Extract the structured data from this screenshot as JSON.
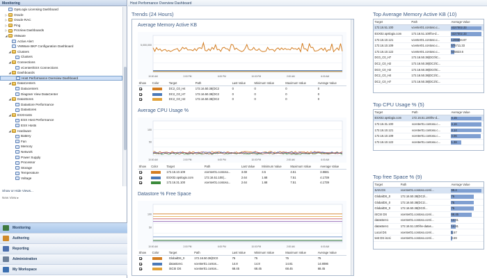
{
  "left_pane": {
    "title": "Monitoring",
    "tree": [
      {
        "label": "OpsLogix Licensing Dashboard",
        "indent": 1,
        "icon": "view",
        "toggle": ""
      },
      {
        "label": "Oracle",
        "indent": 1,
        "icon": "folder",
        "toggle": "▷"
      },
      {
        "label": "Oracle RAC",
        "indent": 1,
        "icon": "folder",
        "toggle": "▷"
      },
      {
        "label": "Ping",
        "indent": 1,
        "icon": "folder",
        "toggle": "▷"
      },
      {
        "label": "ProView Dashboards",
        "indent": 1,
        "icon": "folder",
        "toggle": "▷"
      },
      {
        "label": "VMware",
        "indent": 1,
        "icon": "folder",
        "toggle": "◢"
      },
      {
        "label": "Active Alert",
        "indent": 2,
        "icon": "view",
        "toggle": ""
      },
      {
        "label": "VMWare BKP Configuration Dashboard",
        "indent": 2,
        "icon": "view",
        "toggle": ""
      },
      {
        "label": "Clusters",
        "indent": 2,
        "icon": "folder",
        "toggle": "◢"
      },
      {
        "label": "Clusters",
        "indent": 3,
        "icon": "view",
        "toggle": ""
      },
      {
        "label": "Connections",
        "indent": 2,
        "icon": "folder",
        "toggle": "◢"
      },
      {
        "label": "vCenter/ESX Connections",
        "indent": 3,
        "icon": "view",
        "toggle": ""
      },
      {
        "label": "Dashboards",
        "indent": 2,
        "icon": "folder",
        "toggle": "◢"
      },
      {
        "label": "Host Performance Overview Dashboard",
        "indent": 3,
        "icon": "view",
        "toggle": "",
        "selected": true
      },
      {
        "label": "DataCenters",
        "indent": 2,
        "icon": "folder",
        "toggle": "◢"
      },
      {
        "label": "Datacenters",
        "indent": 3,
        "icon": "view",
        "toggle": ""
      },
      {
        "label": "Diagram View DataCenter",
        "indent": 3,
        "icon": "view",
        "toggle": ""
      },
      {
        "label": "DataStores",
        "indent": 2,
        "icon": "folder",
        "toggle": "◢"
      },
      {
        "label": "Datastore Performance",
        "indent": 3,
        "icon": "view",
        "toggle": ""
      },
      {
        "label": "Datastores",
        "indent": 3,
        "icon": "view",
        "toggle": ""
      },
      {
        "label": "ESXHosts",
        "indent": 2,
        "icon": "folder",
        "toggle": "◢"
      },
      {
        "label": "ESX Host Performance",
        "indent": 3,
        "icon": "view",
        "toggle": ""
      },
      {
        "label": "ESX Hosts",
        "indent": 3,
        "icon": "view",
        "toggle": ""
      },
      {
        "label": "Hardware",
        "indent": 2,
        "icon": "folder",
        "toggle": "◢"
      },
      {
        "label": "Battery",
        "indent": 3,
        "icon": "view",
        "toggle": ""
      },
      {
        "label": "Fan",
        "indent": 3,
        "icon": "view",
        "toggle": ""
      },
      {
        "label": "Memory",
        "indent": 3,
        "icon": "view",
        "toggle": ""
      },
      {
        "label": "Network",
        "indent": 3,
        "icon": "view",
        "toggle": ""
      },
      {
        "label": "Power Supply",
        "indent": 3,
        "icon": "view",
        "toggle": ""
      },
      {
        "label": "Processor",
        "indent": 3,
        "icon": "view",
        "toggle": ""
      },
      {
        "label": "Storage",
        "indent": 3,
        "icon": "view",
        "toggle": ""
      },
      {
        "label": "Temperature",
        "indent": 3,
        "icon": "view",
        "toggle": ""
      },
      {
        "label": "Voltage",
        "indent": 3,
        "icon": "view",
        "toggle": ""
      }
    ],
    "show_hide": "Show or Hide Views...",
    "new_view": "New View ▸",
    "wunderbar": [
      {
        "label": "Monitoring",
        "color": "#3f7a3f",
        "active": true
      },
      {
        "label": "Authoring",
        "color": "#d08a2a",
        "active": false
      },
      {
        "label": "Reporting",
        "color": "#4b6fae",
        "active": false
      },
      {
        "label": "Administration",
        "color": "#6b7f99",
        "active": false
      },
      {
        "label": "My Workspace",
        "color": "#3b6fb0",
        "active": false
      }
    ]
  },
  "main": {
    "breadcrumb": "Host Performance Overview Dashboard",
    "trends_title": "Trends (24 Hours)",
    "time_ticks": [
      "10:00 AM",
      "12:00 PM",
      "2:00 PM",
      "4:00 PM",
      "6:00 PM",
      "8:00 PM",
      "10:00 PM",
      "12:00 AM",
      "2:00 AM",
      "4:00 AM",
      "6:00 AM",
      "8:00 AM"
    ],
    "col_headers": {
      "show": "Show",
      "color": "Color",
      "target": "Target",
      "path": "Path",
      "last": "Last Value",
      "min": "Minimum Value",
      "max": "Maximum Value",
      "avg": "Average Value"
    }
  },
  "charts": {
    "memory": {
      "title": "Average Memory Active KB",
      "y_ticks": [
        "5,000,000",
        ""
      ],
      "rows": [
        {
          "color": "#d37d21",
          "target": "DC2_C0_H4",
          "path": "172.16.50.38(DC2",
          "last": "0",
          "min": "0",
          "max": "0",
          "avg": "0"
        },
        {
          "color": "#4a79b8",
          "target": "DC2_C0_H7",
          "path": "172.16.50.38(DC2",
          "last": "0",
          "min": "0",
          "max": "0",
          "avg": "0"
        },
        {
          "color": "#e1a23a",
          "target": "DC2_C0_H2",
          "path": "172.16.50.38(DC2",
          "last": "0",
          "min": "0",
          "max": "0",
          "avg": "0"
        }
      ]
    },
    "cpu": {
      "title": "Average CPU Usage %",
      "y_ticks": [
        "100",
        "50"
      ],
      "rows": [
        {
          "color": "#d37d21",
          "target": "172.16.10.109",
          "path": "vcenter01.contoso...",
          "last": "3.69",
          "min": "3.5",
          "max": "4.51",
          "avg": "3.8681"
        },
        {
          "color": "#4a79b8",
          "target": "ESX02.opslogix.com",
          "path": "172.16.51.100(...",
          "last": "2.64",
          "min": "1.68",
          "max": "7.51",
          "avg": "4.1739"
        },
        {
          "color": "#3b8a3b",
          "target": "172.16.31.100",
          "path": "vcenter01.contoso...",
          "last": "2.64",
          "min": "1.68",
          "max": "7.51",
          "avg": "4.1739"
        }
      ]
    },
    "datastore": {
      "title": "Datastore % Free Space",
      "y_ticks": [
        "100",
        "50"
      ],
      "rows": [
        {
          "color": "#d37d21",
          "target": "GlobalDS_0",
          "path": "172.16.50.38(DC0",
          "last": "75",
          "min": "75",
          "max": "75",
          "avg": "75"
        },
        {
          "color": "#4a79b8",
          "target": "datastore1",
          "path": "vcenter01.contos...",
          "last": "14.8",
          "min": "14.8",
          "max": "14.81",
          "avg": "14.8086"
        },
        {
          "color": "#e1a23a",
          "target": "iSCSI DS",
          "path": "vcenter01.contos...",
          "last": "68.45",
          "min": "68.45",
          "max": "68.45",
          "avg": "68.45"
        }
      ]
    }
  },
  "top_memory": {
    "title": "Top Average Memory Active KB (10)",
    "headers": {
      "target": "Target",
      "path": "Path",
      "value": "Average Value"
    },
    "rows": [
      {
        "target": "172.16.51.100",
        "path": "vcenter01.contoso.c...",
        "value": "4327002.33",
        "frac": 1.0
      },
      {
        "target": "ESX02.opslogix.com",
        "path": "172.16.51.100\\hv-d...",
        "value": "4327002.33",
        "frac": 1.0
      },
      {
        "target": "172.16.10.121",
        "path": "vcenter01.contoso.c...",
        "value": "1299894.67",
        "frac": 0.3
      },
      {
        "target": "172.16.10.109",
        "path": "vcenter01.contoso.c...",
        "value": "576711.33",
        "frac": 0.13
      },
      {
        "target": "172.16.10.122",
        "path": "vcenter01.contoso.c...",
        "value": "545823.6",
        "frac": 0.12
      },
      {
        "target": "DC0_C0_H7",
        "path": "172.16.50.38(DC0\\C...",
        "value": "",
        "frac": 0
      },
      {
        "target": "DC2_C0_H2",
        "path": "172.16.50.38(DC2\\C...",
        "value": "",
        "frac": 0
      },
      {
        "target": "DC0_C0_H2",
        "path": "172.16.50.38(DC0\\C...",
        "value": "",
        "frac": 0
      },
      {
        "target": "DC2_C0_H4",
        "path": "172.16.50.38(DC2\\C...",
        "value": "",
        "frac": 0
      },
      {
        "target": "DC2_C0_H7",
        "path": "172.16.50.38(DC2\\C...",
        "value": "",
        "frac": 0
      }
    ]
  },
  "top_cpu": {
    "title": "Top CPU Usage % (5)",
    "headers": {
      "target": "Target",
      "path": "Path",
      "value": "Average Value"
    },
    "rows": [
      {
        "target": "ESX02.opslogix.com",
        "path": "172.16.51.100\\hv-d...",
        "value": "4.15",
        "frac": 1.0
      },
      {
        "target": "172.16.31.100",
        "path": "vcenter01.contoso.c...",
        "value": "4.16",
        "frac": 1.0
      },
      {
        "target": "172.16.10.121",
        "path": "vcenter01.contoso.c...",
        "value": "4.14",
        "frac": 1.0
      },
      {
        "target": "172.16.10.109",
        "path": "vcenter01.contoso.c...",
        "value": "4.06",
        "frac": 0.98
      },
      {
        "target": "172.16.10.122",
        "path": "vcenter01.contoso.c...",
        "value": "1.38",
        "frac": 0.33
      }
    ]
  },
  "top_space": {
    "title": "Top free Space % (9)",
    "headers": {
      "target": "Target",
      "path": "Path",
      "value": "Average Value"
    },
    "rows": [
      {
        "target": "SAN DS",
        "path": "vcenter01.contoso.com\\...",
        "value": "99.4",
        "frac": 1.0
      },
      {
        "target": "GlobalDS_0",
        "path": "172.16.50.38(DC2\\...",
        "value": "75",
        "frac": 0.75
      },
      {
        "target": "GlobalDS_0",
        "path": "172.16.50.38(DC1\\...",
        "value": "75",
        "frac": 0.75
      },
      {
        "target": "GlobalDS_0",
        "path": "172.16.50.38(DC0\\...",
        "value": "75",
        "frac": 0.75
      },
      {
        "target": "iSCSI DS",
        "path": "vcenter01.contoso.com\\...",
        "value": "68.45",
        "frac": 0.69
      },
      {
        "target": "datastore1",
        "path": "vcenter01.contoso.com\\...",
        "value": "14.81",
        "frac": 0.15
      },
      {
        "target": "datastore1",
        "path": "172.16.51.100\\hv-datas...",
        "value": "14.81",
        "frac": 0.15
      },
      {
        "target": "Local DS",
        "path": "vcenter01.contoso.com\\...",
        "value": "5.57",
        "frac": 0.06
      },
      {
        "target": "test DS iscsi",
        "path": "vcenter01.contoso.com\\...",
        "value": "3.69",
        "frac": 0.04
      }
    ]
  }
}
